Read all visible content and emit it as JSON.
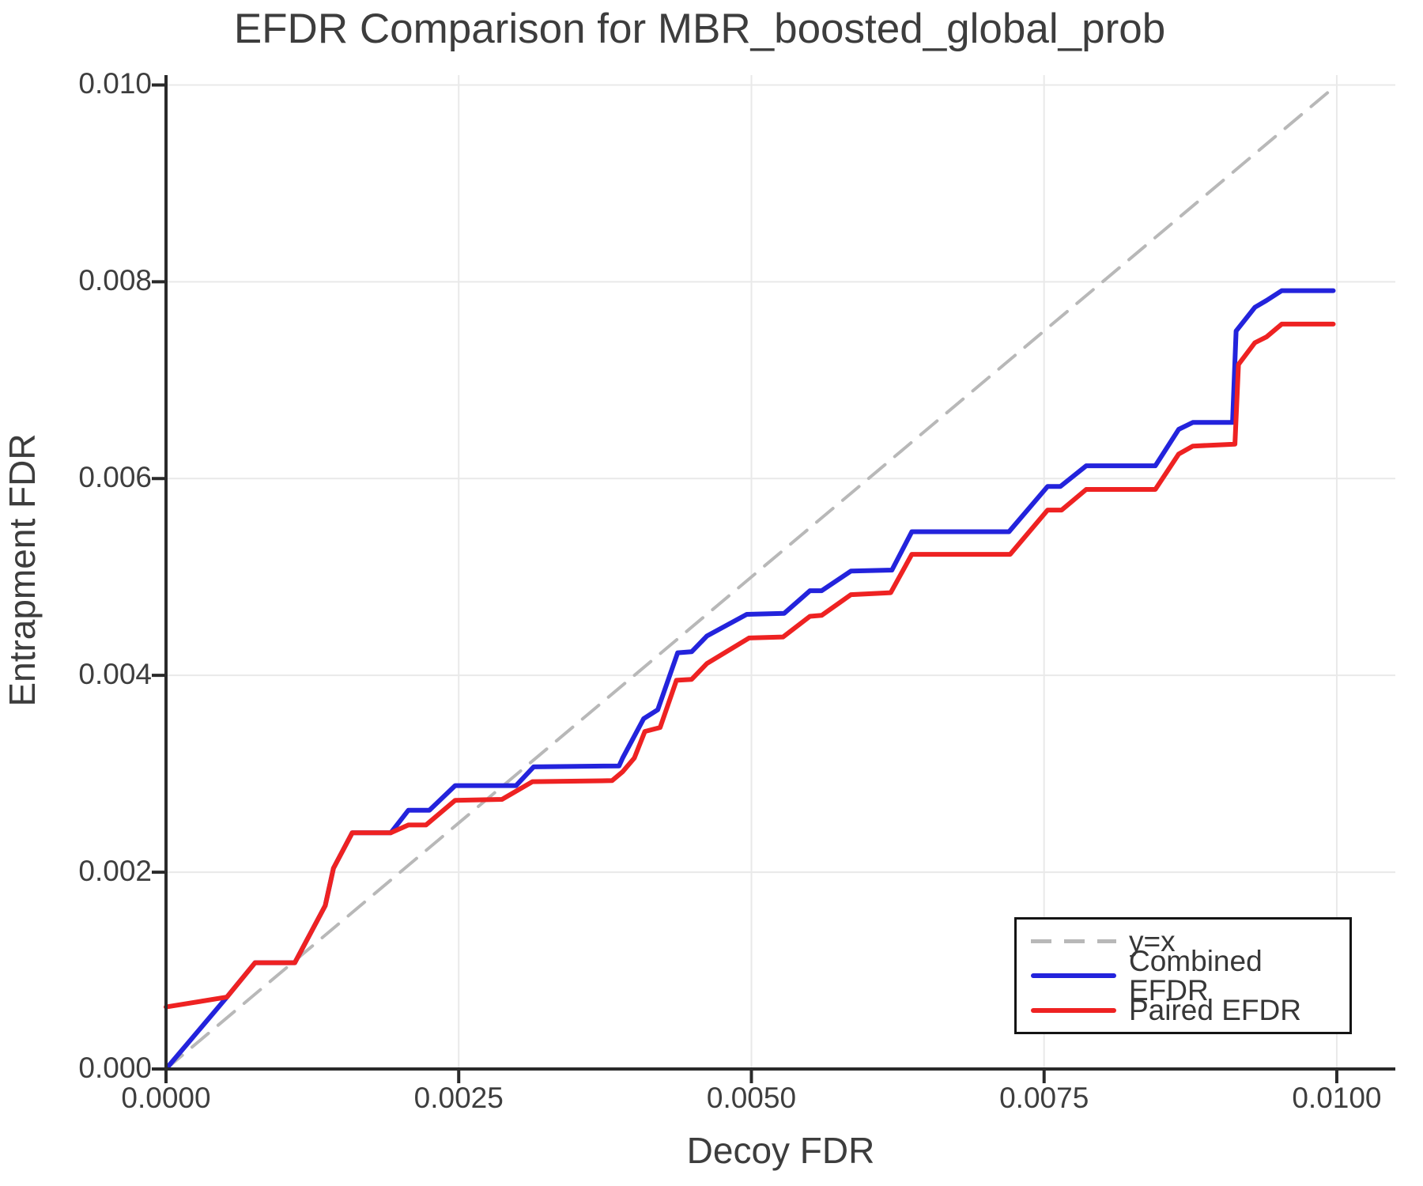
{
  "title": "EFDR Comparison for MBR_boosted_global_prob",
  "colors": {
    "combined": "#2323dc",
    "paired": "#ee2222",
    "identity": "#b8b8b8",
    "grid": "#e9e9e9",
    "spine": "#2a2a2a",
    "text": "#3d3d3d"
  },
  "chart_data": {
    "type": "line",
    "title": "EFDR Comparison for MBR_boosted_global_prob",
    "xlabel": "Decoy FDR",
    "ylabel": "Entrapment FDR",
    "xlim": [
      0,
      0.0105
    ],
    "ylim": [
      0,
      0.0101
    ],
    "grid": true,
    "xticks": {
      "values": [
        0,
        0.0025,
        0.005,
        0.0075,
        0.01
      ],
      "labels": [
        "0.0000",
        "0.0025",
        "0.0050",
        "0.0075",
        "0.0100"
      ]
    },
    "yticks": {
      "values": [
        0,
        0.002,
        0.004,
        0.006,
        0.008,
        0.01
      ],
      "labels": [
        "0.000",
        "0.002",
        "0.004",
        "0.006",
        "0.008",
        "0.010"
      ]
    },
    "legend": {
      "position": "lower right",
      "entries": [
        {
          "label": "y=x",
          "color": "#b8b8b8",
          "dashed": true
        },
        {
          "label": "Combined EFDR",
          "color": "#2323dc",
          "dashed": false
        },
        {
          "label": "Paired EFDR",
          "color": "#ee2222",
          "dashed": false
        }
      ]
    },
    "series": [
      {
        "name": "y=x",
        "style": "dashed",
        "color": "#b8b8b8",
        "points": [
          [
            0,
            0
          ],
          [
            0.01,
            0.01
          ]
        ]
      },
      {
        "name": "Combined EFDR",
        "style": "solid",
        "color": "#2323dc",
        "points": [
          [
            0,
            0
          ],
          [
            0.00052,
            0.00073
          ],
          [
            0.00076,
            0.00108
          ],
          [
            0.0011,
            0.00108
          ],
          [
            0.00136,
            0.00166
          ],
          [
            0.00143,
            0.00204
          ],
          [
            0.00159,
            0.0024
          ],
          [
            0.00192,
            0.0024
          ],
          [
            0.00207,
            0.00263
          ],
          [
            0.00225,
            0.00263
          ],
          [
            0.00247,
            0.00288
          ],
          [
            0.00299,
            0.00288
          ],
          [
            0.00314,
            0.00307
          ],
          [
            0.00387,
            0.00308
          ],
          [
            0.0039,
            0.00316
          ],
          [
            0.00408,
            0.00356
          ],
          [
            0.0042,
            0.00365
          ],
          [
            0.00437,
            0.00423
          ],
          [
            0.00449,
            0.00424
          ],
          [
            0.00462,
            0.0044
          ],
          [
            0.00496,
            0.00462
          ],
          [
            0.00528,
            0.00463
          ],
          [
            0.0055,
            0.00486
          ],
          [
            0.0056,
            0.00486
          ],
          [
            0.00585,
            0.00506
          ],
          [
            0.0062,
            0.00507
          ],
          [
            0.00637,
            0.00546
          ],
          [
            0.0072,
            0.00546
          ],
          [
            0.00753,
            0.00592
          ],
          [
            0.00764,
            0.00592
          ],
          [
            0.00786,
            0.00613
          ],
          [
            0.00845,
            0.00613
          ],
          [
            0.00865,
            0.0065
          ],
          [
            0.00877,
            0.00657
          ],
          [
            0.00911,
            0.00657
          ],
          [
            0.00914,
            0.0075
          ],
          [
            0.0093,
            0.00774
          ],
          [
            0.0094,
            0.00781
          ],
          [
            0.00953,
            0.00791
          ],
          [
            0.00997,
            0.00791
          ]
        ]
      },
      {
        "name": "Paired EFDR",
        "style": "solid",
        "color": "#ee2222",
        "points": [
          [
            0,
            0.00063
          ],
          [
            0.00052,
            0.00073
          ],
          [
            0.00076,
            0.00108
          ],
          [
            0.0011,
            0.00108
          ],
          [
            0.00136,
            0.00166
          ],
          [
            0.00143,
            0.00204
          ],
          [
            0.00159,
            0.0024
          ],
          [
            0.00192,
            0.0024
          ],
          [
            0.00207,
            0.00248
          ],
          [
            0.00222,
            0.00248
          ],
          [
            0.00247,
            0.00273
          ],
          [
            0.00287,
            0.00274
          ],
          [
            0.00313,
            0.00292
          ],
          [
            0.00381,
            0.00293
          ],
          [
            0.0039,
            0.00302
          ],
          [
            0.004,
            0.00316
          ],
          [
            0.00409,
            0.00343
          ],
          [
            0.00422,
            0.00347
          ],
          [
            0.00436,
            0.00395
          ],
          [
            0.00449,
            0.00396
          ],
          [
            0.00462,
            0.00412
          ],
          [
            0.00498,
            0.00438
          ],
          [
            0.00527,
            0.00439
          ],
          [
            0.0055,
            0.0046
          ],
          [
            0.0056,
            0.00461
          ],
          [
            0.00585,
            0.00482
          ],
          [
            0.00619,
            0.00484
          ],
          [
            0.00637,
            0.00523
          ],
          [
            0.00721,
            0.00523
          ],
          [
            0.00753,
            0.00568
          ],
          [
            0.00765,
            0.00568
          ],
          [
            0.00786,
            0.00589
          ],
          [
            0.00845,
            0.00589
          ],
          [
            0.00865,
            0.00625
          ],
          [
            0.00877,
            0.00633
          ],
          [
            0.00913,
            0.00635
          ],
          [
            0.00916,
            0.00716
          ],
          [
            0.0093,
            0.00738
          ],
          [
            0.0094,
            0.00744
          ],
          [
            0.00953,
            0.00757
          ],
          [
            0.00997,
            0.00757
          ]
        ]
      }
    ]
  }
}
